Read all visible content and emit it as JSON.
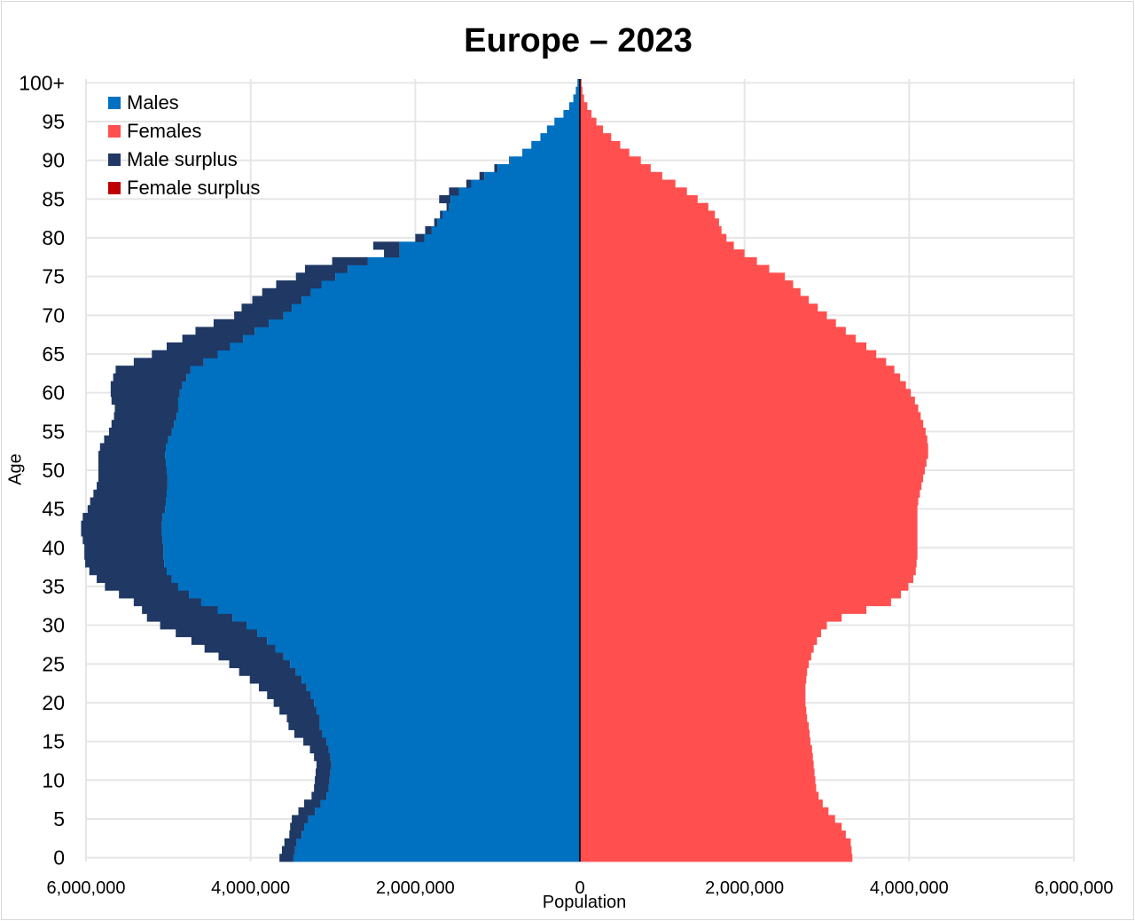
{
  "colors": {
    "males": "#0070c0",
    "females": "#ff4f4f",
    "male_surplus": "#1f3864",
    "female_surplus": "#c00000",
    "grid": "#e6e6e6",
    "center_line": "#000000"
  },
  "chart_data": {
    "type": "bar",
    "orientation": "horizontal",
    "subtype": "population-pyramid",
    "title": "Europe – 2023",
    "xlabel": "Population",
    "ylabel": "Age",
    "xlim": [
      -6000000,
      6000000
    ],
    "x_ticks": [
      {
        "value": -6000000,
        "label": "6,000,000"
      },
      {
        "value": -4000000,
        "label": "4,000,000"
      },
      {
        "value": -2000000,
        "label": "2,000,000"
      },
      {
        "value": 0,
        "label": "0"
      },
      {
        "value": 2000000,
        "label": "2,000,000"
      },
      {
        "value": 4000000,
        "label": "4,000,000"
      },
      {
        "value": 6000000,
        "label": "6,000,000"
      }
    ],
    "y_ticks": [
      "0",
      "5",
      "10",
      "15",
      "20",
      "25",
      "30",
      "35",
      "40",
      "45",
      "50",
      "55",
      "60",
      "65",
      "70",
      "75",
      "80",
      "85",
      "90",
      "95",
      "100+"
    ],
    "legend": {
      "position": "top-left",
      "entries": [
        "Males",
        "Females",
        "Male surplus",
        "Female surplus"
      ]
    },
    "grid": true,
    "ages": [
      "0",
      "1",
      "2",
      "3",
      "4",
      "5",
      "6",
      "7",
      "8",
      "9",
      "10",
      "11",
      "12",
      "13",
      "14",
      "15",
      "16",
      "17",
      "18",
      "19",
      "20",
      "21",
      "22",
      "23",
      "24",
      "25",
      "26",
      "27",
      "28",
      "29",
      "30",
      "31",
      "32",
      "33",
      "34",
      "35",
      "36",
      "37",
      "38",
      "39",
      "40",
      "41",
      "42",
      "43",
      "44",
      "45",
      "46",
      "47",
      "48",
      "49",
      "50",
      "51",
      "52",
      "53",
      "54",
      "55",
      "56",
      "57",
      "58",
      "59",
      "60",
      "61",
      "62",
      "63",
      "64",
      "65",
      "66",
      "67",
      "68",
      "69",
      "70",
      "71",
      "72",
      "73",
      "74",
      "75",
      "76",
      "77",
      "78",
      "79",
      "80",
      "81",
      "82",
      "83",
      "84",
      "85",
      "86",
      "87",
      "88",
      "89",
      "90",
      "91",
      "92",
      "93",
      "94",
      "95",
      "96",
      "97",
      "98",
      "99",
      "100+"
    ],
    "series": [
      {
        "name": "Males",
        "values": [
          3480000,
          3460000,
          3440000,
          3380000,
          3350000,
          3300000,
          3220000,
          3150000,
          3080000,
          3050000,
          3040000,
          3030000,
          3020000,
          3030000,
          3050000,
          3080000,
          3130000,
          3160000,
          3160000,
          3200000,
          3230000,
          3270000,
          3320000,
          3380000,
          3450000,
          3520000,
          3600000,
          3700000,
          3800000,
          3920000,
          4050000,
          4220000,
          4400000,
          4600000,
          4750000,
          4880000,
          4960000,
          5020000,
          5050000,
          5060000,
          5060000,
          5070000,
          5080000,
          5080000,
          5070000,
          5040000,
          5030000,
          5020000,
          5010000,
          5010000,
          5020000,
          5030000,
          5040000,
          5030000,
          5000000,
          4960000,
          4930000,
          4900000,
          4880000,
          4880000,
          4860000,
          4830000,
          4780000,
          4730000,
          4570000,
          4400000,
          4250000,
          4090000,
          3950000,
          3780000,
          3600000,
          3500000,
          3380000,
          3270000,
          3140000,
          2970000,
          2820000,
          2580000,
          2190000,
          2190000,
          1890000,
          1800000,
          1730000,
          1670000,
          1590000,
          1570000,
          1470000,
          1320000,
          1160000,
          1000000,
          850000,
          700000,
          590000,
          480000,
          400000,
          310000,
          200000,
          130000,
          80000,
          50000,
          30000
        ]
      },
      {
        "name": "Females",
        "values": [
          3310000,
          3300000,
          3290000,
          3230000,
          3180000,
          3100000,
          3020000,
          2950000,
          2900000,
          2870000,
          2860000,
          2850000,
          2840000,
          2830000,
          2820000,
          2800000,
          2790000,
          2780000,
          2760000,
          2750000,
          2740000,
          2740000,
          2740000,
          2750000,
          2760000,
          2780000,
          2810000,
          2840000,
          2880000,
          2930000,
          3000000,
          3180000,
          3480000,
          3780000,
          3900000,
          3990000,
          4050000,
          4080000,
          4090000,
          4100000,
          4100000,
          4100000,
          4100000,
          4100000,
          4100000,
          4100000,
          4110000,
          4130000,
          4150000,
          4170000,
          4190000,
          4210000,
          4230000,
          4230000,
          4220000,
          4200000,
          4170000,
          4140000,
          4110000,
          4070000,
          4020000,
          3960000,
          3890000,
          3820000,
          3720000,
          3600000,
          3480000,
          3350000,
          3230000,
          3110000,
          3000000,
          2890000,
          2780000,
          2680000,
          2590000,
          2490000,
          2300000,
          2150000,
          2000000,
          1870000,
          1780000,
          1720000,
          1690000,
          1640000,
          1560000,
          1430000,
          1300000,
          1160000,
          1000000,
          860000,
          740000,
          600000,
          490000,
          380000,
          280000,
          200000,
          140000,
          90000,
          50000,
          30000,
          20000
        ]
      },
      {
        "name": "Male surplus",
        "values": [
          170000,
          160000,
          150000,
          150000,
          170000,
          200000,
          200000,
          200000,
          180000,
          180000,
          180000,
          180000,
          180000,
          200000,
          230000,
          280000,
          340000,
          380000,
          400000,
          450000,
          490000,
          530000,
          580000,
          630000,
          690000,
          740000,
          790000,
          860000,
          920000,
          990000,
          1050000,
          1040000,
          920000,
          820000,
          850000,
          890000,
          910000,
          940000,
          960000,
          960000,
          960000,
          970000,
          980000,
          980000,
          970000,
          940000,
          920000,
          890000,
          860000,
          840000,
          830000,
          820000,
          810000,
          800000,
          780000,
          760000,
          760000,
          760000,
          770000,
          810000,
          840000,
          870000,
          890000,
          910000,
          850000,
          800000,
          770000,
          740000,
          720000,
          670000,
          600000,
          610000,
          600000,
          590000,
          550000,
          480000,
          520000,
          430000,
          190000,
          320000,
          110000,
          80000,
          40000,
          30000,
          30000,
          140000,
          120000,
          60000,
          60000,
          40000,
          10000,
          0,
          0,
          0,
          0,
          0,
          0,
          0,
          0,
          0,
          0
        ]
      },
      {
        "name": "Female surplus",
        "values": [
          0,
          0,
          0,
          0,
          0,
          0,
          0,
          0,
          0,
          0,
          0,
          0,
          0,
          0,
          0,
          0,
          0,
          0,
          0,
          0,
          0,
          0,
          0,
          0,
          0,
          0,
          0,
          0,
          0,
          0,
          0,
          0,
          0,
          0,
          0,
          0,
          0,
          0,
          0,
          0,
          0,
          0,
          0,
          0,
          0,
          0,
          0,
          0,
          0,
          0,
          0,
          0,
          0,
          0,
          0,
          0,
          0,
          0,
          0,
          0,
          0,
          0,
          0,
          0,
          0,
          0,
          0,
          0,
          0,
          0,
          0,
          0,
          0,
          0,
          0,
          0,
          0,
          0,
          0,
          0,
          0,
          0,
          0,
          0,
          0,
          0,
          0,
          0,
          0,
          0,
          0,
          0,
          0,
          0,
          0,
          0,
          0,
          0,
          0,
          0,
          0
        ]
      }
    ]
  }
}
